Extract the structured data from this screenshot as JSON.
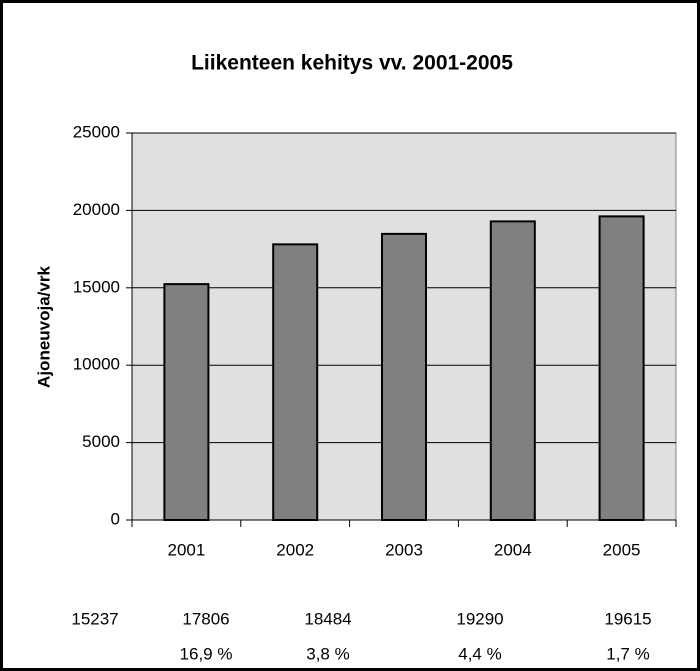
{
  "chart_data": {
    "type": "bar",
    "title": "Liikenteen kehitys vv. 2001-2005",
    "y_label": "Ajoneuvoja/vrk",
    "categories": [
      "2001",
      "2002",
      "2003",
      "2004",
      "2005"
    ],
    "values": [
      15237,
      17806,
      18484,
      19290,
      19615
    ],
    "color": "#808080",
    "plot_background": "#e0e0e0",
    "ylim": [
      0,
      25000
    ],
    "yticks": [
      0,
      5000,
      10000,
      15000,
      20000,
      25000
    ],
    "grid": true
  },
  "table": {
    "changes": [
      "16,9 %",
      "3,8 %",
      "4,4 %",
      "1,7 %"
    ]
  }
}
